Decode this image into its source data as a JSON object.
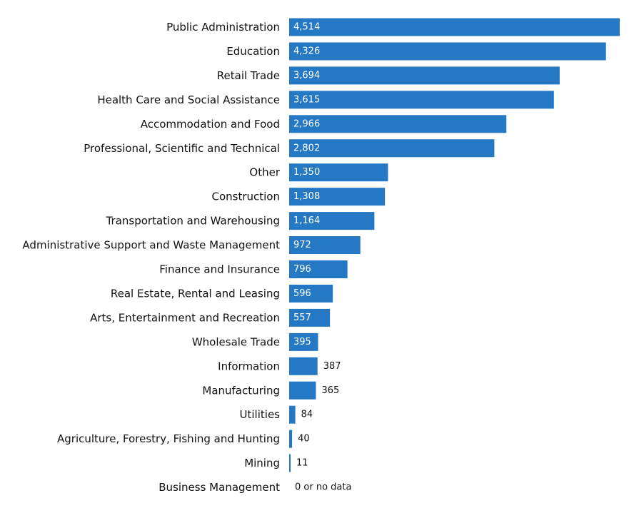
{
  "chart_data": {
    "type": "bar",
    "orientation": "horizontal",
    "categories": [
      "Public Administration",
      "Education",
      "Retail Trade",
      "Health Care and Social Assistance",
      "Accommodation and Food",
      "Professional, Scientific and Technical",
      "Other",
      "Construction",
      "Transportation and Warehousing",
      "Administrative Support and Waste Management",
      "Finance and Insurance",
      "Real Estate, Rental and Leasing",
      "Arts, Entertainment and Recreation",
      "Wholesale Trade",
      "Information",
      "Manufacturing",
      "Utilities",
      "Agriculture, Forestry, Fishing and Hunting",
      "Mining",
      "Business Management"
    ],
    "values": [
      4514,
      4326,
      3694,
      3615,
      2966,
      2802,
      1350,
      1308,
      1164,
      972,
      796,
      596,
      557,
      395,
      387,
      365,
      84,
      40,
      11,
      0
    ],
    "value_labels": [
      "4,514",
      "4,326",
      "3,694",
      "3,615",
      "2,966",
      "2,802",
      "1,350",
      "1,308",
      "1,164",
      "972",
      "796",
      "596",
      "557",
      "395",
      "387",
      "365",
      "84",
      "40",
      "11",
      "0 or no data"
    ],
    "xlim": [
      0,
      4514
    ],
    "grid": false,
    "legend": false,
    "bar_color": "#2478c4",
    "inside_label_color": "#ffffff",
    "outside_label_color": "#111111"
  }
}
